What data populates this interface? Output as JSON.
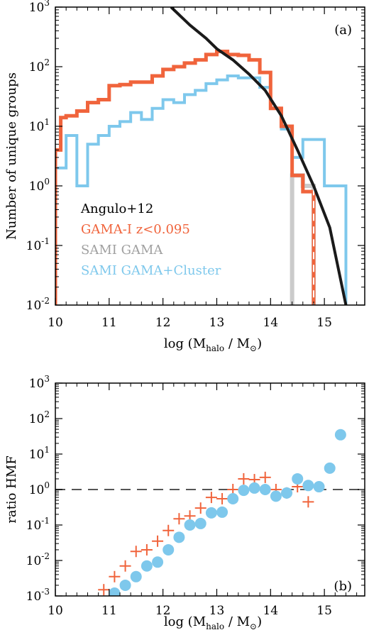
{
  "chart_data": [
    {
      "type": "line",
      "panel_label": "(a)",
      "xlabel": {
        "prefix": "log (M",
        "sub1": "halo",
        "mid": " / M",
        "sub2": "⊙",
        "suffix": ")"
      },
      "ylabel": "Number of unique groups",
      "xlim": [
        10,
        15.75
      ],
      "ylim_log10": [
        -2,
        3
      ],
      "xticks": [
        "10",
        "11",
        "12",
        "13",
        "14",
        "15"
      ],
      "yticks": [
        {
          "base": "10",
          "exp": "-2",
          "value": -2
        },
        {
          "base": "10",
          "exp": "-1",
          "value": -1
        },
        {
          "base": "10",
          "exp": "0",
          "value": 0
        },
        {
          "base": "10",
          "exp": "1",
          "value": 1
        },
        {
          "base": "10",
          "exp": "2",
          "value": 2
        },
        {
          "base": "10",
          "exp": "3",
          "value": 3
        }
      ],
      "legend_placement": "bottom-left",
      "series": [
        {
          "name": "Angulo+12",
          "color": "#1a1a1a",
          "kind": "line",
          "x": [
            12.15,
            12.5,
            12.8,
            13.0,
            13.3,
            13.6,
            13.9,
            14.2,
            14.5,
            14.8,
            15.1,
            15.4
          ],
          "y": [
            1000,
            500,
            300,
            200,
            130,
            75,
            40,
            15,
            4,
            1,
            0.2,
            0.01
          ]
        },
        {
          "name": "GAMA-I z<0.095",
          "color": "#f0643c",
          "kind": "step",
          "edges": [
            10.0,
            10.1,
            10.2,
            10.4,
            10.6,
            10.8,
            11.0,
            11.2,
            11.4,
            11.6,
            11.8,
            12.0,
            12.2,
            12.4,
            12.6,
            12.8,
            13.0,
            13.2,
            13.4,
            13.6,
            13.8,
            14.0,
            14.2,
            14.4,
            14.6,
            14.8
          ],
          "counts": [
            4,
            14,
            15,
            18,
            25,
            28,
            48,
            50,
            55,
            55,
            70,
            90,
            100,
            115,
            130,
            160,
            180,
            160,
            155,
            130,
            80,
            20,
            10,
            1.5,
            0.8
          ]
        },
        {
          "name": "SAMI GAMA",
          "color": "#a0a0a0",
          "kind": "step",
          "edges": [
            14.4,
            14.6,
            14.8
          ],
          "counts": [
            1.5,
            1.0
          ]
        },
        {
          "name": "SAMI GAMA+Cluster",
          "color": "#7ec8ec",
          "kind": "step",
          "edges": [
            10.0,
            10.2,
            10.4,
            10.6,
            10.8,
            11.0,
            11.2,
            11.4,
            11.6,
            11.8,
            12.0,
            12.2,
            12.4,
            12.6,
            12.8,
            13.0,
            13.2,
            13.4,
            13.6,
            13.8,
            14.0,
            14.2,
            14.4,
            14.6,
            15.0,
            15.4
          ],
          "counts": [
            2,
            7,
            1,
            5,
            7,
            10,
            12,
            17,
            13,
            20,
            28,
            25,
            34,
            40,
            52,
            60,
            70,
            65,
            65,
            45,
            20,
            9,
            3,
            6,
            1
          ]
        }
      ]
    },
    {
      "type": "scatter",
      "panel_label": "(b)",
      "xlabel": {
        "prefix": "log (M",
        "sub1": "halo",
        "mid": " / M",
        "sub2": "⊙",
        "suffix": ")"
      },
      "ylabel": "ratio HMF",
      "xlim": [
        10,
        15.75
      ],
      "ylim_log10": [
        -3,
        3
      ],
      "xticks": [
        "10",
        "11",
        "12",
        "13",
        "14",
        "15"
      ],
      "yticks": [
        {
          "base": "10",
          "exp": "-3",
          "value": -3
        },
        {
          "base": "10",
          "exp": "-2",
          "value": -2
        },
        {
          "base": "10",
          "exp": "-1",
          "value": -1
        },
        {
          "base": "10",
          "exp": "0",
          "value": 0
        },
        {
          "base": "10",
          "exp": "1",
          "value": 1
        },
        {
          "base": "10",
          "exp": "2",
          "value": 2
        },
        {
          "base": "10",
          "exp": "3",
          "value": 3
        }
      ],
      "reference_line_y": 1,
      "series": [
        {
          "marker": "cross",
          "color": "#f0643c",
          "x": [
            10.9,
            11.1,
            11.3,
            11.5,
            11.7,
            11.9,
            12.1,
            12.3,
            12.5,
            12.7,
            12.9,
            13.1,
            13.3,
            13.5,
            13.7,
            13.9,
            14.1,
            14.3,
            14.5,
            14.7
          ],
          "y": [
            0.0015,
            0.0035,
            0.007,
            0.018,
            0.02,
            0.035,
            0.07,
            0.15,
            0.18,
            0.3,
            0.6,
            0.55,
            1.0,
            2.0,
            1.9,
            2.2,
            1.0,
            0.8,
            1.2,
            0.45
          ]
        },
        {
          "marker": "circle",
          "color": "#7ec8ec",
          "x": [
            11.1,
            11.3,
            11.5,
            11.7,
            11.9,
            12.1,
            12.3,
            12.5,
            12.7,
            12.9,
            13.1,
            13.3,
            13.5,
            13.7,
            13.9,
            14.1,
            14.3,
            14.5,
            14.7,
            14.9,
            15.1,
            15.3
          ],
          "y": [
            0.0012,
            0.002,
            0.0035,
            0.007,
            0.009,
            0.02,
            0.045,
            0.1,
            0.11,
            0.22,
            0.23,
            0.55,
            0.95,
            1.1,
            1.0,
            0.65,
            0.8,
            2.0,
            1.3,
            1.2,
            4.0,
            35
          ]
        }
      ]
    }
  ]
}
